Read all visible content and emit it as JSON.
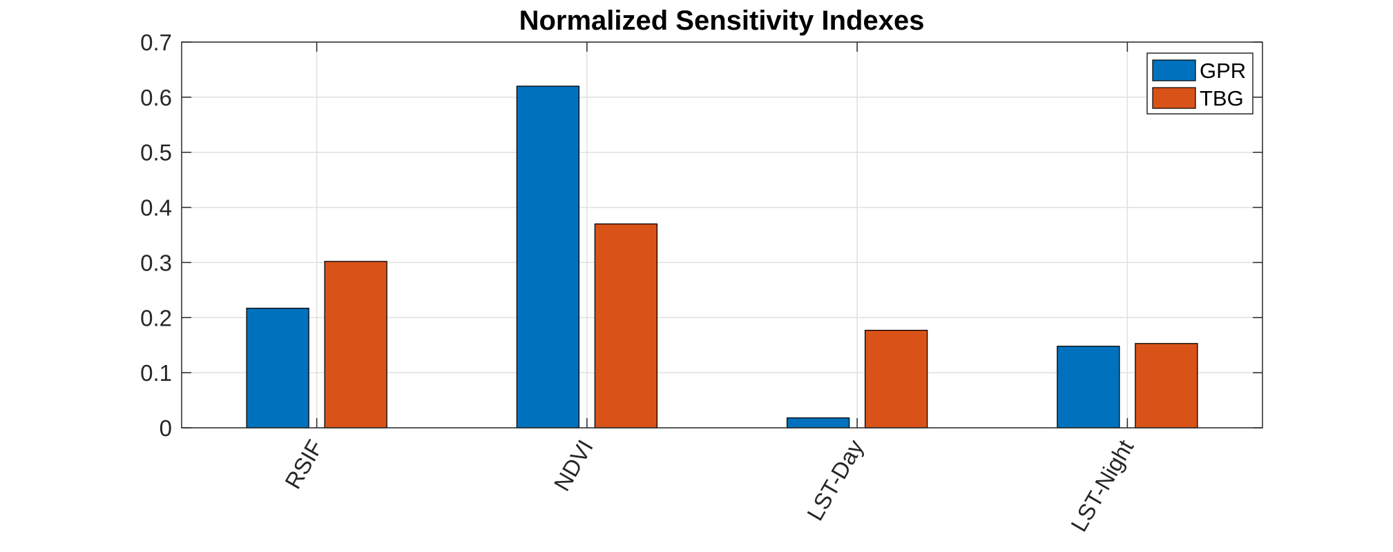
{
  "chart_data": {
    "type": "bar",
    "title": "Normalized Sensitivity Indexes",
    "xlabel": "",
    "ylabel": "",
    "categories": [
      "RSIF",
      "NDVI",
      "LST-Day",
      "LST-Night"
    ],
    "series": [
      {
        "name": "GPR",
        "values": [
          0.217,
          0.62,
          0.018,
          0.148
        ]
      },
      {
        "name": "TBG",
        "values": [
          0.302,
          0.37,
          0.177,
          0.153
        ]
      }
    ],
    "ylim": [
      0,
      0.7
    ],
    "yticks": [
      0,
      0.1,
      0.2,
      0.3,
      0.4,
      0.5,
      0.6,
      0.7
    ],
    "ytick_labels": [
      "0",
      "0.1",
      "0.2",
      "0.3",
      "0.4",
      "0.5",
      "0.6",
      "0.7"
    ],
    "grid": true,
    "legend_position": "top-right",
    "colors": {
      "GPR": "#0072BD",
      "TBG": "#D95319"
    }
  }
}
